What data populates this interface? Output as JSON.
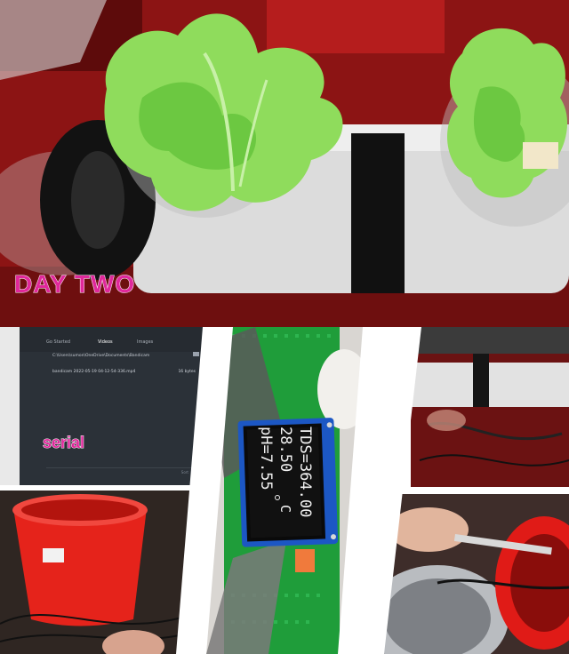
{
  "top_caption": "DAY TWO",
  "file_browser": {
    "tabs": [
      "Go Started",
      "Videos",
      "Images"
    ],
    "path": "C:\\Users\\sumon\\OneDrive\\Documents\\Bandicam",
    "file_name": "bandicam 2022-05-19 04-12-54-336.mp4",
    "file_size": "16 bytes",
    "footer": "Sort",
    "overlay_label": "serial"
  },
  "oled": {
    "line1": "TDS=364.00",
    "line2": "28.50",
    "line2_unit": "C",
    "line3": "pH=7.55"
  },
  "colors": {
    "caption": "#e0289b",
    "bucket": "#e5231b",
    "pcb": "#1f9d3a",
    "lettuce": "#7fd650"
  }
}
